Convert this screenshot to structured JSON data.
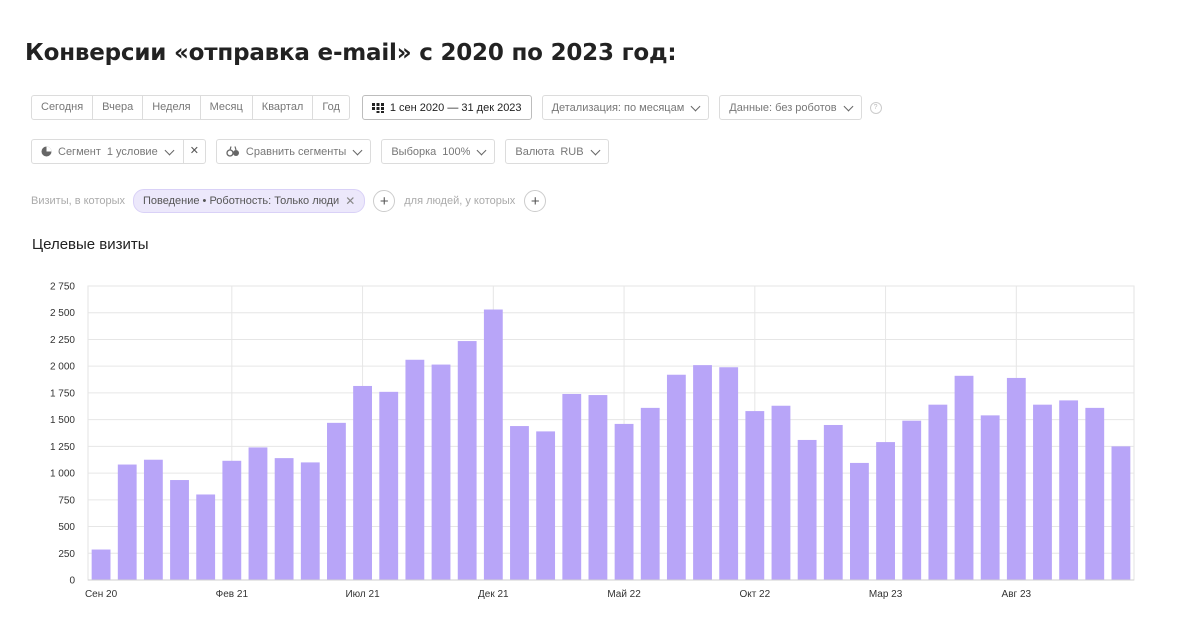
{
  "page": {
    "title": "Конверсии «отправка e-mail» с 2020 по 2023 год:"
  },
  "toolbar": {
    "periods": [
      "Сегодня",
      "Вчера",
      "Неделя",
      "Месяц",
      "Квартал",
      "Год"
    ],
    "date_range": "1 сен 2020 — 31 дек 2023",
    "detail": "Детализация: по месяцам",
    "data_mode": "Данные: без роботов",
    "help": "?",
    "segment_label": "Сегмент",
    "segment_value": "1 условие",
    "segment_clear": "✕",
    "compare": "Сравнить сегменты",
    "sample_label": "Выборка",
    "sample_value": "100%",
    "currency_label": "Валюта",
    "currency_value": "RUB"
  },
  "filter": {
    "prefix": "Визиты, в которых",
    "chip": "Поведение • Роботность: Только люди",
    "chip_close": "✕",
    "plus": "+",
    "people": "для людей, у которых"
  },
  "chart_title": "Целевые визиты",
  "chart_data": {
    "type": "bar",
    "title": "Целевые визиты",
    "categories": [
      "Сен 20",
      "Окт 20",
      "Ноя 20",
      "Дек 20",
      "Янв 21",
      "Фев 21",
      "Мар 21",
      "Апр 21",
      "Май 21",
      "Июн 21",
      "Июл 21",
      "Авг 21",
      "Сен 21",
      "Окт 21",
      "Ноя 21",
      "Дек 21",
      "Янв 22",
      "Фев 22",
      "Мар 22",
      "Апр 22",
      "Май 22",
      "Июн 22",
      "Июл 22",
      "Авг 22",
      "Сен 22",
      "Окт 22",
      "Ноя 22",
      "Дек 22",
      "Янв 23",
      "Фев 23",
      "Мар 23",
      "Апр 23",
      "Май 23",
      "Июн 23",
      "Июл 23",
      "Авг 23",
      "Сен 23",
      "Окт 23",
      "Ноя 23",
      "Дек 23"
    ],
    "values": [
      285,
      1080,
      1125,
      935,
      800,
      1115,
      1240,
      1140,
      1100,
      1470,
      1815,
      1760,
      2060,
      2015,
      2235,
      2530,
      1440,
      1390,
      1740,
      1730,
      1460,
      1610,
      1920,
      2010,
      1990,
      1580,
      1630,
      1310,
      1450,
      1095,
      1290,
      1490,
      1640,
      1910,
      1540,
      1890,
      1640,
      1680,
      1610,
      1250
    ],
    "visible_x_labels": [
      "Сен 20",
      "Фев 21",
      "Июл 21",
      "Дек 21",
      "Май 22",
      "Окт 22",
      "Мар 23",
      "Авг 23"
    ],
    "y_ticks": [
      "0",
      "250",
      "500",
      "750",
      "1 000",
      "1 250",
      "1 500",
      "1 750",
      "2 000",
      "2 250",
      "2 500",
      "2 750"
    ],
    "ylim": [
      0,
      2750
    ],
    "grid": true,
    "bar_color": "#b8a5f8"
  }
}
